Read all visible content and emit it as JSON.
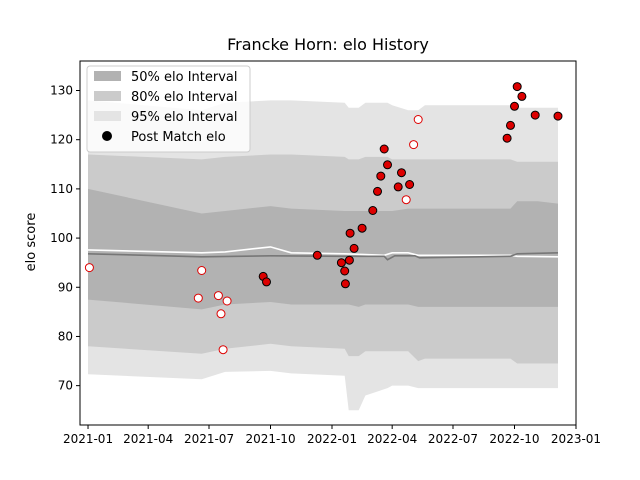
{
  "chart_data": {
    "type": "scatter",
    "title": "Francke Horn: elo History",
    "xlabel": "",
    "ylabel": "elo score",
    "xlim": [
      "2020-12-20",
      "2023-01-01"
    ],
    "ylim": [
      62,
      136
    ],
    "yticks": [
      70,
      80,
      90,
      100,
      110,
      120,
      130
    ],
    "xticks": [
      "2021-01",
      "2021-04",
      "2021-07",
      "2021-10",
      "2022-01",
      "2022-04",
      "2022-07",
      "2022-10",
      "2023-01"
    ],
    "grid": false,
    "legend_position": "top-left",
    "legend": [
      {
        "label": "50% elo Interval",
        "kind": "band",
        "color": "#b2b2b2"
      },
      {
        "label": "80% elo Interval",
        "kind": "band",
        "color": "#cbcbcb"
      },
      {
        "label": "95% elo Interval",
        "kind": "band",
        "color": "#e4e4e4"
      },
      {
        "label": "Post Match elo",
        "kind": "marker",
        "color": "#000000"
      }
    ],
    "bands": {
      "x": [
        "2021-01-01",
        "2021-06-20",
        "2021-07-25",
        "2021-10-01",
        "2021-11-01",
        "2022-01-20",
        "2022-01-26",
        "2022-02-10",
        "2022-02-20",
        "2022-03-25",
        "2022-04-01",
        "2022-04-25",
        "2022-05-10",
        "2022-05-20",
        "2022-09-25",
        "2022-10-05",
        "2022-11-05",
        "2022-12-05"
      ],
      "b95_hi": [
        128.0,
        126.0,
        127.5,
        128.0,
        128.0,
        127.5,
        126.5,
        126.5,
        127.5,
        127.5,
        127.0,
        126.0,
        126.0,
        127.0,
        127.0,
        126.5,
        126.5,
        126.5
      ],
      "b80_hi": [
        117.0,
        116.0,
        116.5,
        117.0,
        117.0,
        116.5,
        116.0,
        116.0,
        116.5,
        116.5,
        116.0,
        116.0,
        116.0,
        116.0,
        116.0,
        115.5,
        115.5,
        115.5
      ],
      "b50_hi": [
        110.0,
        105.0,
        105.5,
        106.5,
        106.0,
        105.5,
        105.5,
        105.5,
        105.5,
        105.5,
        105.5,
        106.0,
        106.0,
        106.0,
        106.0,
        107.5,
        107.5,
        107.0
      ],
      "b50_lo": [
        87.5,
        85.5,
        86.5,
        87.0,
        86.5,
        86.5,
        86.5,
        86.0,
        86.5,
        86.5,
        86.5,
        86.5,
        86.0,
        86.0,
        86.0,
        86.0,
        86.0,
        86.0
      ],
      "b80_lo": [
        78.0,
        76.5,
        77.5,
        78.5,
        78.0,
        77.5,
        76.0,
        76.0,
        77.0,
        77.0,
        77.0,
        77.0,
        75.0,
        75.5,
        75.5,
        74.5,
        74.5,
        74.5
      ],
      "b95_lo": [
        72.3,
        71.3,
        72.8,
        73.0,
        72.5,
        72.0,
        65.0,
        65.0,
        68.0,
        69.5,
        70.0,
        70.0,
        69.5,
        69.5,
        69.5,
        69.5,
        69.5,
        69.5
      ]
    },
    "lines": [
      {
        "color": "#ffffff",
        "x": [
          "2021-01-01",
          "2021-06-20",
          "2021-07-25",
          "2021-10-01",
          "2021-11-01",
          "2022-01-20",
          "2022-03-20",
          "2022-04-01",
          "2022-04-25",
          "2022-05-10",
          "2022-09-25",
          "2022-10-05",
          "2022-12-05"
        ],
        "values": [
          97.6,
          97.0,
          97.2,
          98.2,
          97.0,
          96.8,
          96.5,
          97.0,
          97.0,
          96.5,
          96.5,
          96.3,
          96.2
        ]
      },
      {
        "color": "#777777",
        "x": [
          "2021-01-01",
          "2021-06-20",
          "2021-10-01",
          "2022-01-20",
          "2022-03-20",
          "2022-03-25",
          "2022-04-05",
          "2022-05-05",
          "2022-05-12",
          "2022-09-25",
          "2022-10-05",
          "2022-12-05"
        ],
        "values": [
          96.8,
          96.2,
          96.4,
          96.3,
          96.3,
          95.6,
          96.4,
          96.4,
          96.0,
          96.3,
          96.8,
          97.0
        ]
      }
    ],
    "points": [
      {
        "x": "2021-01-03",
        "y": 94.0,
        "filled": false
      },
      {
        "x": "2021-06-15",
        "y": 87.8,
        "filled": false
      },
      {
        "x": "2021-06-20",
        "y": 93.4,
        "filled": false
      },
      {
        "x": "2021-07-15",
        "y": 88.3,
        "filled": false
      },
      {
        "x": "2021-07-19",
        "y": 84.6,
        "filled": false
      },
      {
        "x": "2021-07-22",
        "y": 77.3,
        "filled": false
      },
      {
        "x": "2021-07-28",
        "y": 87.2,
        "filled": false
      },
      {
        "x": "2021-09-20",
        "y": 92.2,
        "filled": true
      },
      {
        "x": "2021-09-25",
        "y": 91.1,
        "filled": true
      },
      {
        "x": "2021-12-10",
        "y": 96.5,
        "filled": true
      },
      {
        "x": "2022-01-15",
        "y": 95.0,
        "filled": true
      },
      {
        "x": "2022-01-20",
        "y": 93.3,
        "filled": true
      },
      {
        "x": "2022-01-21",
        "y": 90.7,
        "filled": true
      },
      {
        "x": "2022-01-27",
        "y": 95.5,
        "filled": true
      },
      {
        "x": "2022-01-28",
        "y": 101.0,
        "filled": true
      },
      {
        "x": "2022-02-03",
        "y": 97.9,
        "filled": true
      },
      {
        "x": "2022-02-15",
        "y": 102.0,
        "filled": true
      },
      {
        "x": "2022-03-03",
        "y": 105.6,
        "filled": true
      },
      {
        "x": "2022-03-10",
        "y": 109.5,
        "filled": true
      },
      {
        "x": "2022-03-15",
        "y": 112.6,
        "filled": true
      },
      {
        "x": "2022-03-20",
        "y": 118.1,
        "filled": true
      },
      {
        "x": "2022-03-25",
        "y": 114.9,
        "filled": true
      },
      {
        "x": "2022-04-10",
        "y": 110.4,
        "filled": true
      },
      {
        "x": "2022-04-15",
        "y": 113.3,
        "filled": true
      },
      {
        "x": "2022-04-22",
        "y": 107.8,
        "filled": false
      },
      {
        "x": "2022-04-27",
        "y": 110.9,
        "filled": true
      },
      {
        "x": "2022-05-03",
        "y": 119.0,
        "filled": false
      },
      {
        "x": "2022-05-10",
        "y": 124.1,
        "filled": false
      },
      {
        "x": "2022-09-20",
        "y": 120.3,
        "filled": true
      },
      {
        "x": "2022-09-25",
        "y": 122.9,
        "filled": true
      },
      {
        "x": "2022-10-01",
        "y": 126.8,
        "filled": true
      },
      {
        "x": "2022-10-05",
        "y": 130.8,
        "filled": true
      },
      {
        "x": "2022-10-12",
        "y": 128.8,
        "filled": true
      },
      {
        "x": "2022-11-01",
        "y": 125.0,
        "filled": true
      },
      {
        "x": "2022-12-05",
        "y": 124.8,
        "filled": true
      }
    ]
  }
}
